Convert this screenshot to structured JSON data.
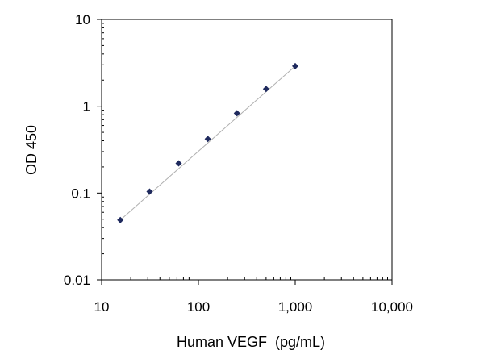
{
  "chart_data": {
    "type": "scatter",
    "title": "",
    "xlabel": "Human VEGF  (pg/mL)",
    "ylabel": "OD 450",
    "xscale": "log",
    "yscale": "log",
    "xlim": [
      10,
      10000
    ],
    "ylim": [
      0.01,
      10
    ],
    "x_ticks": [
      {
        "value": 10,
        "label": "10"
      },
      {
        "value": 100,
        "label": "100"
      },
      {
        "value": 1000,
        "label": "1,000"
      },
      {
        "value": 10000,
        "label": "10,000"
      }
    ],
    "y_ticks": [
      {
        "value": 0.01,
        "label": "0.01"
      },
      {
        "value": 0.1,
        "label": "0.1"
      },
      {
        "value": 1,
        "label": "1"
      },
      {
        "value": 10,
        "label": "10"
      }
    ],
    "grid": false,
    "legend": "none",
    "marker_color": "#1f2a5e",
    "fit_line_color": "#b0b0b0",
    "series": [
      {
        "x": [
          15.6,
          31.3,
          62.5,
          125,
          250,
          500,
          1000
        ],
        "y": [
          0.049,
          0.104,
          0.22,
          0.42,
          0.83,
          1.58,
          2.9
        ]
      }
    ],
    "trendline": {
      "x": [
        15.6,
        1000
      ],
      "y": [
        0.049,
        2.9
      ]
    }
  }
}
